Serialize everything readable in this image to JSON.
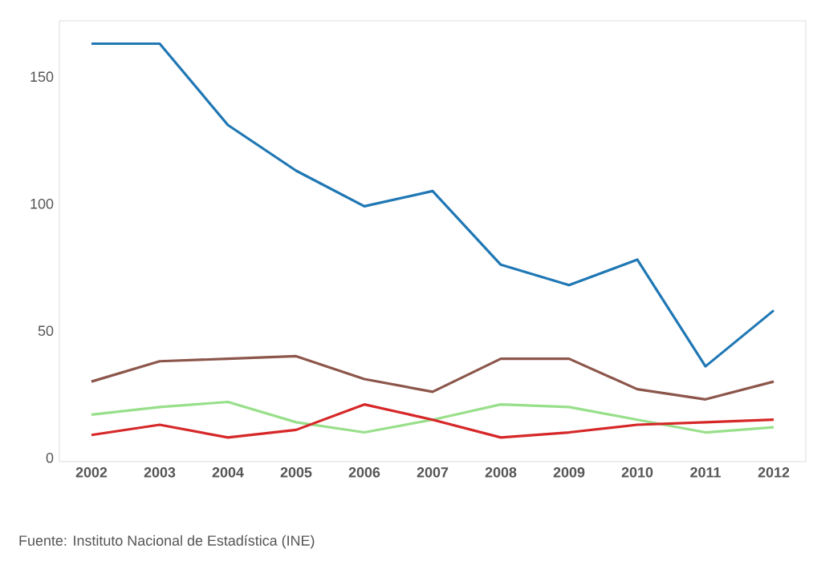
{
  "chart_data": {
    "type": "line",
    "categories": [
      "2002",
      "2003",
      "2004",
      "2005",
      "2006",
      "2007",
      "2008",
      "2009",
      "2010",
      "2011",
      "2012"
    ],
    "series": [
      {
        "color": "#1f77b4",
        "values": [
          163,
          163,
          131,
          113,
          99,
          105,
          76,
          68,
          78,
          36,
          58
        ]
      },
      {
        "color": "#8c564b",
        "values": [
          30,
          38,
          39,
          40,
          31,
          26,
          39,
          39,
          27,
          23,
          30
        ]
      },
      {
        "color": "#98df8a",
        "values": [
          17,
          20,
          22,
          14,
          10,
          15,
          21,
          20,
          15,
          10,
          12
        ]
      },
      {
        "color": "#d62728",
        "values": [
          9,
          13,
          8,
          11,
          21,
          15,
          8,
          10,
          13,
          14,
          15
        ]
      }
    ],
    "ylim": [
      -1.5,
      172
    ],
    "yticks": [
      0,
      50,
      100,
      150
    ],
    "grid": false,
    "marker": "none",
    "line_style": "solid",
    "annotations": [
      "Fuente: Instituto Nacional de Estadística (INE)"
    ]
  }
}
